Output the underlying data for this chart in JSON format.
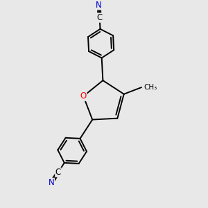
{
  "background_color": "#e8e8e8",
  "bond_color": "#000000",
  "atom_colors": {
    "N": "#0000cd",
    "O": "#ff0000",
    "C": "#000000"
  },
  "line_width": 1.4,
  "figsize": [
    3.0,
    3.0
  ],
  "dpi": 100,
  "xlim": [
    -2.5,
    2.5
  ],
  "ylim": [
    -4.2,
    3.8
  ]
}
